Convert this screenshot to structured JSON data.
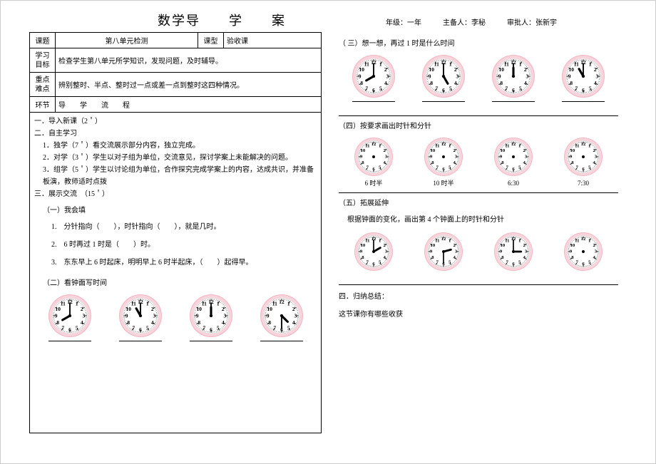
{
  "title": "数学导　　学　　案",
  "meta": {
    "grade_label": "年级：",
    "grade": "一年",
    "host_label": "主备人：",
    "host": "李秘",
    "approver_label": "审批人：",
    "approver": "张新宇"
  },
  "table": {
    "topic_label": "课题",
    "topic": "第八单元检测",
    "type_label": "课型",
    "type": "验收课",
    "goal_label": "学习目标",
    "goal": "检查学生第八单元所学知识，发现问题，及时辅导。",
    "key_label": "重点难点",
    "key": "辨别整时、半点、整时过一点或差一点到整时这四种情况。",
    "step_label": "环节",
    "step": "导　　学　　流　　程"
  },
  "left": {
    "l1": "一．导入新课（2＇）",
    "l2": "二．自主学习",
    "l2_1": "1．独学（7＇）看交流展示部分内容，独立完成。",
    "l2_2": "2．对学（3＇）学生以对子组为单位，交流意见，探讨学案上未能解决的问题。",
    "l2_3": "3．组学（5＇）学生以讨论组为单位，合作探究完成学案上的内容，达成共识，并准备板演，教师适时点拨",
    "l3": "三．展示交流　（15＇）",
    "s1_title": "（一）我会填",
    "s1_1": "1.　分针指向（　　），时针指向（　　），就是几时。",
    "s1_2": "2.　6 时再过 1 时是（　　）时。",
    "s1_3": "3.　东东早上 6 时起床，明明早上 6 时半起床，（　　）起得早。",
    "s2_title": "（二）看钟面写时间"
  },
  "right": {
    "s3_title": "（ 三）想一想，再过 1 时是什么时间",
    "s4_title": "（四）按要求画出时针和分针",
    "s4_labels": [
      "6 时半",
      "10 时半",
      "6:30",
      "7:30"
    ],
    "s5_title": "（五）拓展延伸",
    "s5_text": "根据钟面的变化，画出第 4 个钟面上的时针和分针",
    "l4": "四．归纳总结：",
    "l4_text": "这节课你有哪些收获"
  },
  "clock_style": {
    "rim_color": "#f4b8c4",
    "rim_inner": "#f8d4dc",
    "face_color": "#ffffff",
    "tick_color": "#333333",
    "hand_color": "#000000",
    "number_color": "#000000"
  },
  "clocks": {
    "row2": [
      {
        "h": 8,
        "m": 0,
        "size": 62
      },
      {
        "h": 11,
        "m": 0,
        "size": 62
      },
      {
        "h": 12,
        "m": 0,
        "size": 62
      },
      {
        "h": 4,
        "m": 30,
        "size": 62
      }
    ],
    "row3": [
      {
        "h": 8,
        "m": 0,
        "size": 62
      },
      {
        "h": 5,
        "m": 0,
        "size": 62
      },
      {
        "h": 12,
        "m": 0,
        "size": 62
      },
      {
        "h": 11,
        "m": 0,
        "size": 62
      }
    ],
    "row4": [
      {
        "h": null,
        "m": null,
        "size": 56
      },
      {
        "h": null,
        "m": null,
        "size": 56
      },
      {
        "h": null,
        "m": null,
        "size": 56
      },
      {
        "h": null,
        "m": null,
        "size": 56
      }
    ],
    "row5": [
      {
        "h": 2,
        "m": 0,
        "size": 56
      },
      {
        "h": 2,
        "m": 30,
        "size": 56
      },
      {
        "h": 3,
        "m": 0,
        "size": 56
      },
      {
        "h": null,
        "m": null,
        "size": 56
      }
    ]
  }
}
